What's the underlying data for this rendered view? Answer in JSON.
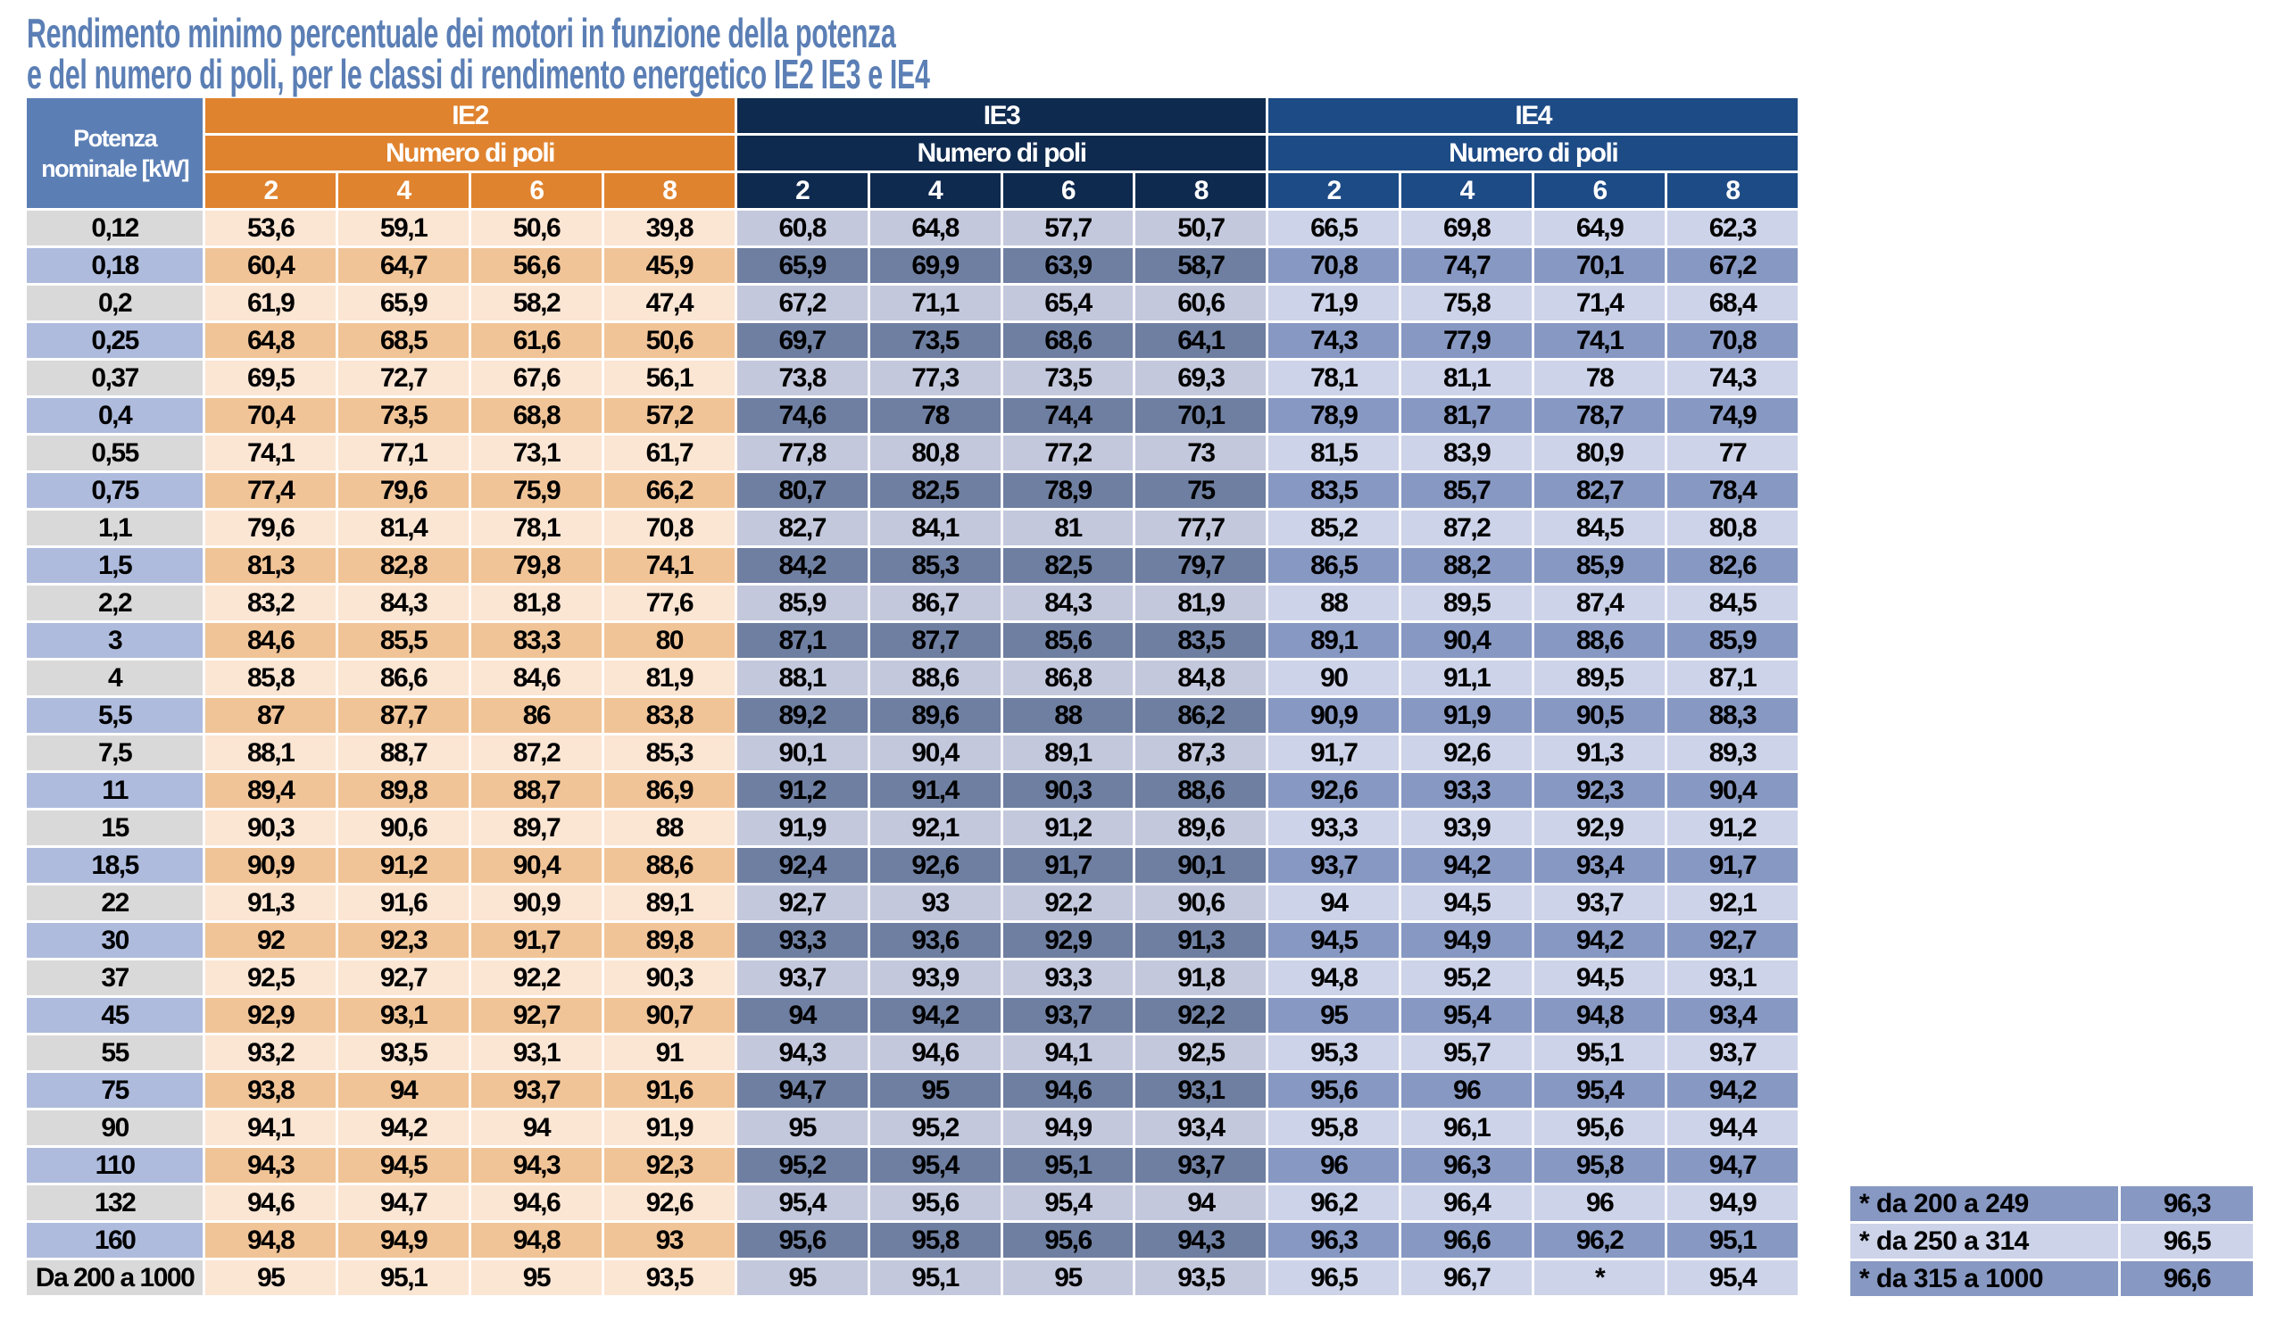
{
  "title": {
    "line1": "Rendimento minimo percentuale dei motori in funzione della potenza",
    "line2": "e del numero di poli, per le classi di rendimento energetico IE2 IE3 e IE4"
  },
  "table": {
    "power_header_line1": "Potenza",
    "power_header_line2": "nominale [kW]",
    "poles_label": "Numero di poli",
    "classes": [
      {
        "name": "IE2",
        "color": "#e0832f"
      },
      {
        "name": "IE3",
        "color": "#0f2a4f"
      },
      {
        "name": "IE4",
        "color": "#1d4b86"
      }
    ],
    "poles": [
      "2",
      "4",
      "6",
      "8"
    ],
    "rows": [
      {
        "power": "0,12",
        "values": [
          "53,6",
          "59,1",
          "50,6",
          "39,8",
          "60,8",
          "64,8",
          "57,7",
          "50,7",
          "66,5",
          "69,8",
          "64,9",
          "62,3"
        ]
      },
      {
        "power": "0,18",
        "values": [
          "60,4",
          "64,7",
          "56,6",
          "45,9",
          "65,9",
          "69,9",
          "63,9",
          "58,7",
          "70,8",
          "74,7",
          "70,1",
          "67,2"
        ]
      },
      {
        "power": "0,2",
        "values": [
          "61,9",
          "65,9",
          "58,2",
          "47,4",
          "67,2",
          "71,1",
          "65,4",
          "60,6",
          "71,9",
          "75,8",
          "71,4",
          "68,4"
        ]
      },
      {
        "power": "0,25",
        "values": [
          "64,8",
          "68,5",
          "61,6",
          "50,6",
          "69,7",
          "73,5",
          "68,6",
          "64,1",
          "74,3",
          "77,9",
          "74,1",
          "70,8"
        ]
      },
      {
        "power": "0,37",
        "values": [
          "69,5",
          "72,7",
          "67,6",
          "56,1",
          "73,8",
          "77,3",
          "73,5",
          "69,3",
          "78,1",
          "81,1",
          "78",
          "74,3"
        ]
      },
      {
        "power": "0,4",
        "values": [
          "70,4",
          "73,5",
          "68,8",
          "57,2",
          "74,6",
          "78",
          "74,4",
          "70,1",
          "78,9",
          "81,7",
          "78,7",
          "74,9"
        ]
      },
      {
        "power": "0,55",
        "values": [
          "74,1",
          "77,1",
          "73,1",
          "61,7",
          "77,8",
          "80,8",
          "77,2",
          "73",
          "81,5",
          "83,9",
          "80,9",
          "77"
        ]
      },
      {
        "power": "0,75",
        "values": [
          "77,4",
          "79,6",
          "75,9",
          "66,2",
          "80,7",
          "82,5",
          "78,9",
          "75",
          "83,5",
          "85,7",
          "82,7",
          "78,4"
        ]
      },
      {
        "power": "1,1",
        "values": [
          "79,6",
          "81,4",
          "78,1",
          "70,8",
          "82,7",
          "84,1",
          "81",
          "77,7",
          "85,2",
          "87,2",
          "84,5",
          "80,8"
        ]
      },
      {
        "power": "1,5",
        "values": [
          "81,3",
          "82,8",
          "79,8",
          "74,1",
          "84,2",
          "85,3",
          "82,5",
          "79,7",
          "86,5",
          "88,2",
          "85,9",
          "82,6"
        ]
      },
      {
        "power": "2,2",
        "values": [
          "83,2",
          "84,3",
          "81,8",
          "77,6",
          "85,9",
          "86,7",
          "84,3",
          "81,9",
          "88",
          "89,5",
          "87,4",
          "84,5"
        ]
      },
      {
        "power": "3",
        "values": [
          "84,6",
          "85,5",
          "83,3",
          "80",
          "87,1",
          "87,7",
          "85,6",
          "83,5",
          "89,1",
          "90,4",
          "88,6",
          "85,9"
        ]
      },
      {
        "power": "4",
        "values": [
          "85,8",
          "86,6",
          "84,6",
          "81,9",
          "88,1",
          "88,6",
          "86,8",
          "84,8",
          "90",
          "91,1",
          "89,5",
          "87,1"
        ]
      },
      {
        "power": "5,5",
        "values": [
          "87",
          "87,7",
          "86",
          "83,8",
          "89,2",
          "89,6",
          "88",
          "86,2",
          "90,9",
          "91,9",
          "90,5",
          "88,3"
        ]
      },
      {
        "power": "7,5",
        "values": [
          "88,1",
          "88,7",
          "87,2",
          "85,3",
          "90,1",
          "90,4",
          "89,1",
          "87,3",
          "91,7",
          "92,6",
          "91,3",
          "89,3"
        ]
      },
      {
        "power": "11",
        "values": [
          "89,4",
          "89,8",
          "88,7",
          "86,9",
          "91,2",
          "91,4",
          "90,3",
          "88,6",
          "92,6",
          "93,3",
          "92,3",
          "90,4"
        ]
      },
      {
        "power": "15",
        "values": [
          "90,3",
          "90,6",
          "89,7",
          "88",
          "91,9",
          "92,1",
          "91,2",
          "89,6",
          "93,3",
          "93,9",
          "92,9",
          "91,2"
        ]
      },
      {
        "power": "18,5",
        "values": [
          "90,9",
          "91,2",
          "90,4",
          "88,6",
          "92,4",
          "92,6",
          "91,7",
          "90,1",
          "93,7",
          "94,2",
          "93,4",
          "91,7"
        ]
      },
      {
        "power": "22",
        "values": [
          "91,3",
          "91,6",
          "90,9",
          "89,1",
          "92,7",
          "93",
          "92,2",
          "90,6",
          "94",
          "94,5",
          "93,7",
          "92,1"
        ]
      },
      {
        "power": "30",
        "values": [
          "92",
          "92,3",
          "91,7",
          "89,8",
          "93,3",
          "93,6",
          "92,9",
          "91,3",
          "94,5",
          "94,9",
          "94,2",
          "92,7"
        ]
      },
      {
        "power": "37",
        "values": [
          "92,5",
          "92,7",
          "92,2",
          "90,3",
          "93,7",
          "93,9",
          "93,3",
          "91,8",
          "94,8",
          "95,2",
          "94,5",
          "93,1"
        ]
      },
      {
        "power": "45",
        "values": [
          "92,9",
          "93,1",
          "92,7",
          "90,7",
          "94",
          "94,2",
          "93,7",
          "92,2",
          "95",
          "95,4",
          "94,8",
          "93,4"
        ]
      },
      {
        "power": "55",
        "values": [
          "93,2",
          "93,5",
          "93,1",
          "91",
          "94,3",
          "94,6",
          "94,1",
          "92,5",
          "95,3",
          "95,7",
          "95,1",
          "93,7"
        ]
      },
      {
        "power": "75",
        "values": [
          "93,8",
          "94",
          "93,7",
          "91,6",
          "94,7",
          "95",
          "94,6",
          "93,1",
          "95,6",
          "96",
          "95,4",
          "94,2"
        ]
      },
      {
        "power": "90",
        "values": [
          "94,1",
          "94,2",
          "94",
          "91,9",
          "95",
          "95,2",
          "94,9",
          "93,4",
          "95,8",
          "96,1",
          "95,6",
          "94,4"
        ]
      },
      {
        "power": "110",
        "values": [
          "94,3",
          "94,5",
          "94,3",
          "92,3",
          "95,2",
          "95,4",
          "95,1",
          "93,7",
          "96",
          "96,3",
          "95,8",
          "94,7"
        ]
      },
      {
        "power": "132",
        "values": [
          "94,6",
          "94,7",
          "94,6",
          "92,6",
          "95,4",
          "95,6",
          "95,4",
          "94",
          "96,2",
          "96,4",
          "96",
          "94,9"
        ]
      },
      {
        "power": "160",
        "values": [
          "94,8",
          "94,9",
          "94,8",
          "93",
          "95,6",
          "95,8",
          "95,6",
          "94,3",
          "96,3",
          "96,6",
          "96,2",
          "95,1"
        ]
      },
      {
        "power": "Da 200 a 1000",
        "values": [
          "95",
          "95,1",
          "95",
          "93,5",
          "95",
          "95,1",
          "95",
          "93,5",
          "96,5",
          "96,7",
          "*",
          "95,4"
        ]
      }
    ]
  },
  "footnote_table": [
    {
      "range": "* da 200 a 249",
      "value": "96,3"
    },
    {
      "range": "* da 250 a 314",
      "value": "96,5"
    },
    {
      "range": "* da 315 a 1000",
      "value": "96,6"
    }
  ]
}
